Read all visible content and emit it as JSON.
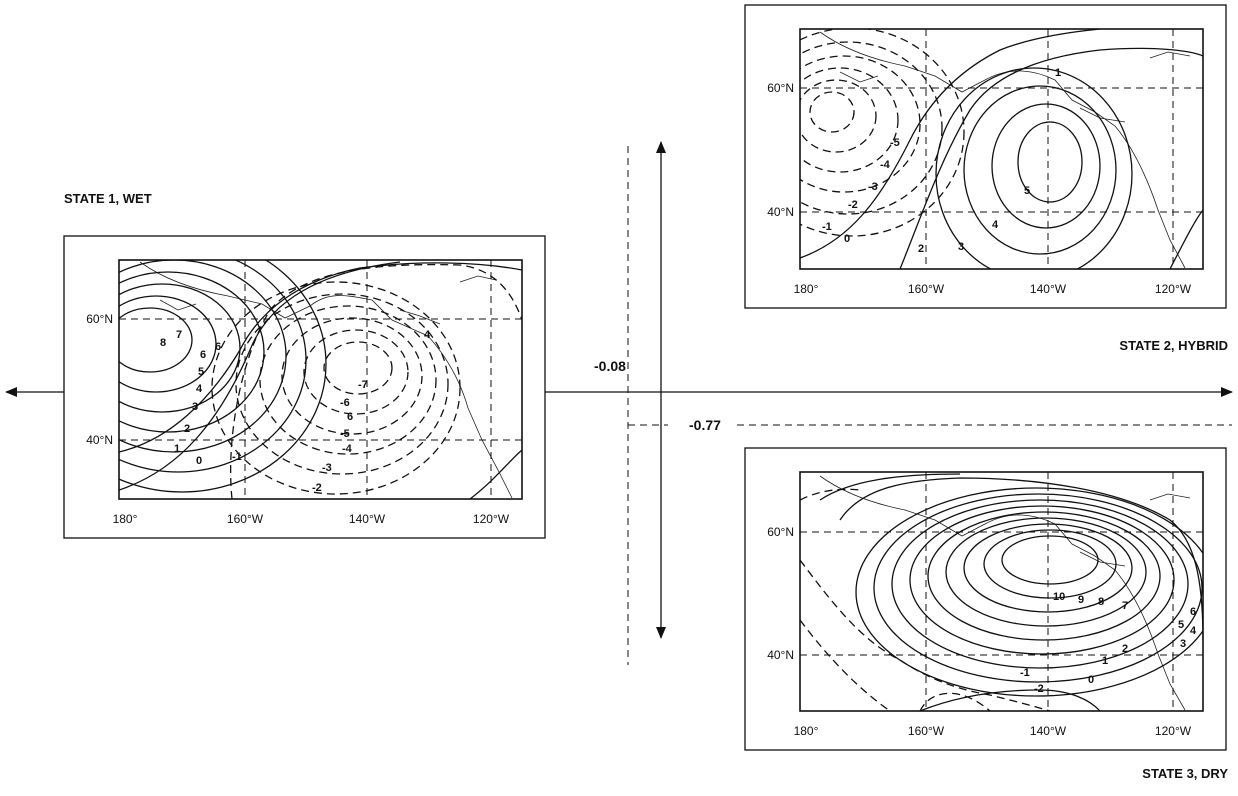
{
  "lon_labels": [
    "180°",
    "160°W",
    "140°W",
    "120°W"
  ],
  "lat_labels": [
    "60°N",
    "40°N"
  ],
  "states": [
    {
      "label": "STATE 1, WET",
      "positive_contours": [
        "0",
        "1",
        "2",
        "3",
        "4",
        "5",
        "6",
        "7",
        "8",
        "6"
      ],
      "negative_contours": [
        "-1",
        "-2",
        "-3",
        "-4",
        "-5",
        "6",
        "-6",
        "-7",
        "4"
      ]
    },
    {
      "label": "STATE 2, HYBRID",
      "positive_contours": [
        "0",
        "1",
        "2",
        "3",
        "4",
        "5"
      ],
      "negative_contours": [
        "-1",
        "-2",
        "-3",
        "-4",
        "-5"
      ]
    },
    {
      "label": "STATE 3, DRY",
      "positive_contours": [
        "0",
        "1",
        "2",
        "3",
        "4",
        "5",
        "6",
        "7",
        "8",
        "9",
        "10"
      ],
      "negative_contours": [
        "-1",
        "-2"
      ]
    }
  ],
  "transitions": {
    "horizontal_value": "-0.08",
    "vertical_value": "-0.77"
  }
}
